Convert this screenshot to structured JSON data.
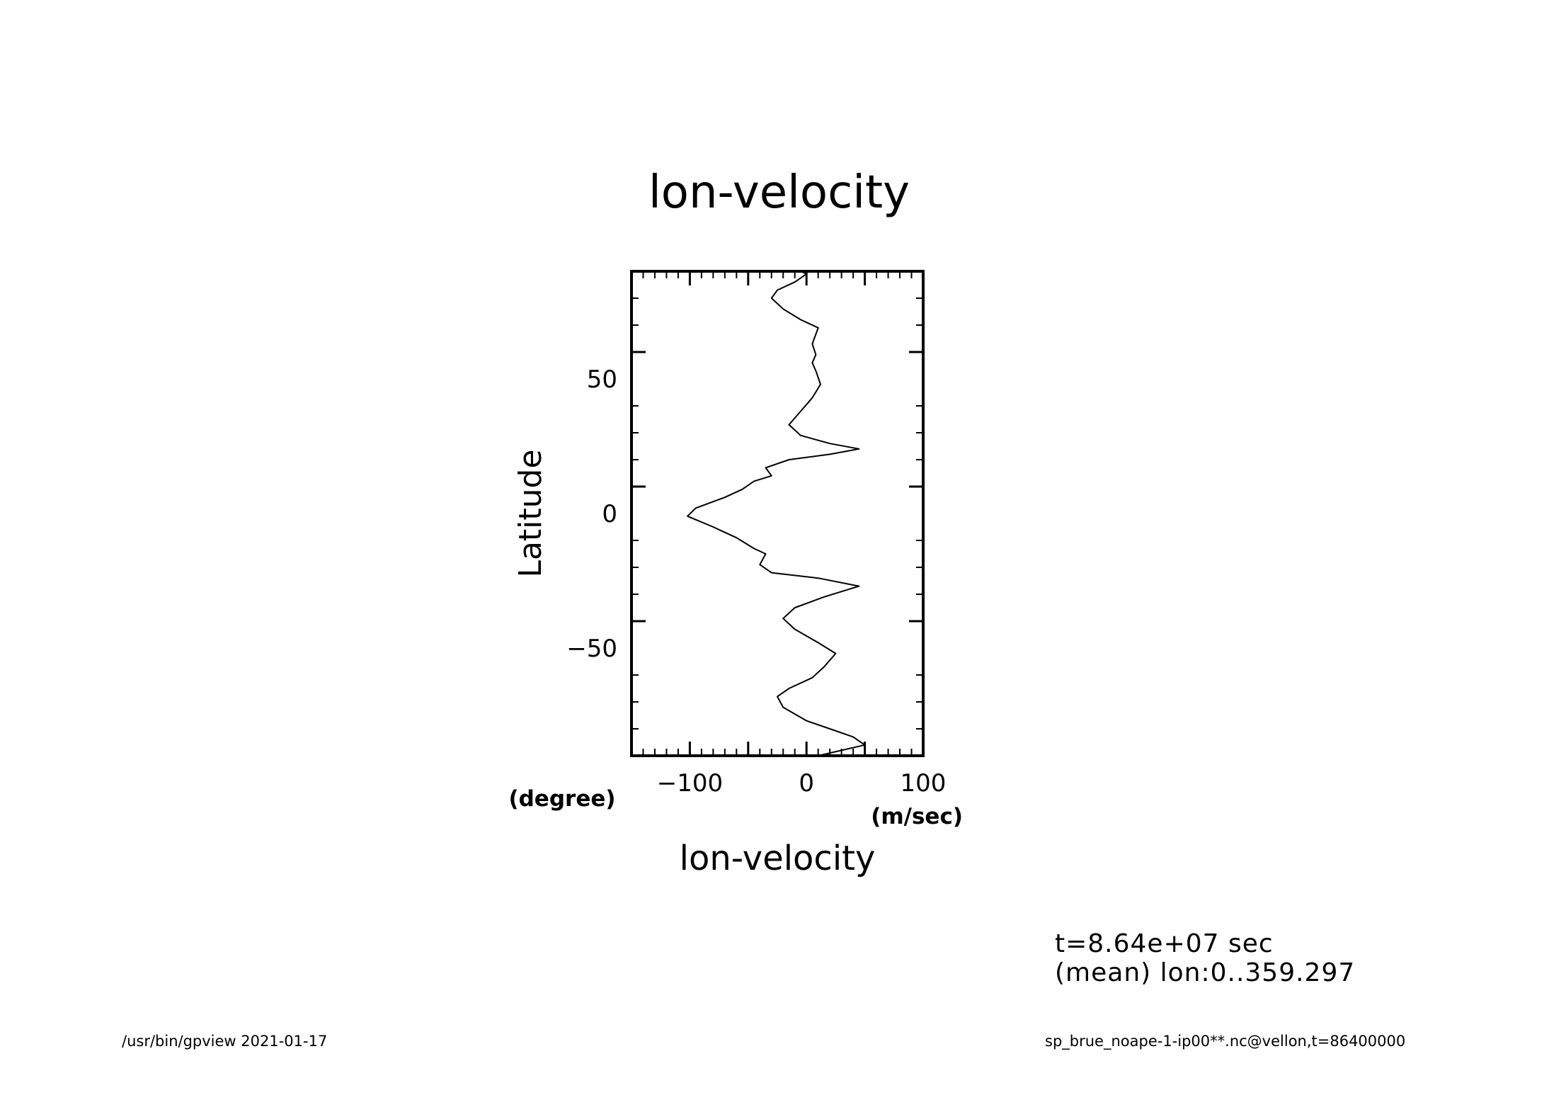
{
  "chart_data": {
    "type": "line",
    "title": "lon-velocity",
    "xlabel": "lon-velocity",
    "xunit": "(m/sec)",
    "ylabel": "Latitude",
    "yunit": "(degree)",
    "xlim": [
      -150,
      100
    ],
    "ylim": [
      -90,
      90
    ],
    "x_ticks": [
      -100,
      0,
      100
    ],
    "y_ticks": [
      -50,
      0,
      50
    ],
    "grid": false,
    "series": [
      {
        "points": [
          [
            10,
            -90
          ],
          [
            30,
            -88
          ],
          [
            50,
            -86
          ],
          [
            40,
            -83
          ],
          [
            20,
            -80
          ],
          [
            0,
            -77
          ],
          [
            -20,
            -72
          ],
          [
            -25,
            -68
          ],
          [
            -15,
            -65
          ],
          [
            5,
            -61
          ],
          [
            15,
            -57
          ],
          [
            25,
            -52
          ],
          [
            10,
            -48
          ],
          [
            -10,
            -43
          ],
          [
            -20,
            -39
          ],
          [
            -10,
            -35
          ],
          [
            15,
            -31
          ],
          [
            45,
            -27
          ],
          [
            10,
            -24
          ],
          [
            -30,
            -22
          ],
          [
            -40,
            -19
          ],
          [
            -35,
            -15
          ],
          [
            -45,
            -13
          ],
          [
            -60,
            -9
          ],
          [
            -80,
            -5
          ],
          [
            -102,
            -1
          ],
          [
            -95,
            2
          ],
          [
            -70,
            6
          ],
          [
            -55,
            9
          ],
          [
            -45,
            12
          ],
          [
            -30,
            14
          ],
          [
            -35,
            17
          ],
          [
            -15,
            20
          ],
          [
            20,
            22
          ],
          [
            45,
            24
          ],
          [
            20,
            26
          ],
          [
            -5,
            29
          ],
          [
            -15,
            33
          ],
          [
            -5,
            38
          ],
          [
            5,
            43
          ],
          [
            12,
            48
          ],
          [
            8,
            53
          ],
          [
            5,
            56
          ],
          [
            8,
            59
          ],
          [
            5,
            63
          ],
          [
            10,
            69
          ],
          [
            -5,
            72
          ],
          [
            -20,
            76
          ],
          [
            -30,
            80
          ],
          [
            -25,
            83
          ],
          [
            -10,
            86
          ],
          [
            0,
            89
          ],
          [
            -5,
            90
          ]
        ]
      }
    ]
  },
  "info": {
    "time": "t=8.64e+07 sec",
    "mean": "(mean) lon:0..359.297"
  },
  "footer": {
    "left": "/usr/bin/gpview   2021-01-17",
    "right": "sp_brue_noape-1-ip00**.nc@vellon,t=86400000"
  }
}
